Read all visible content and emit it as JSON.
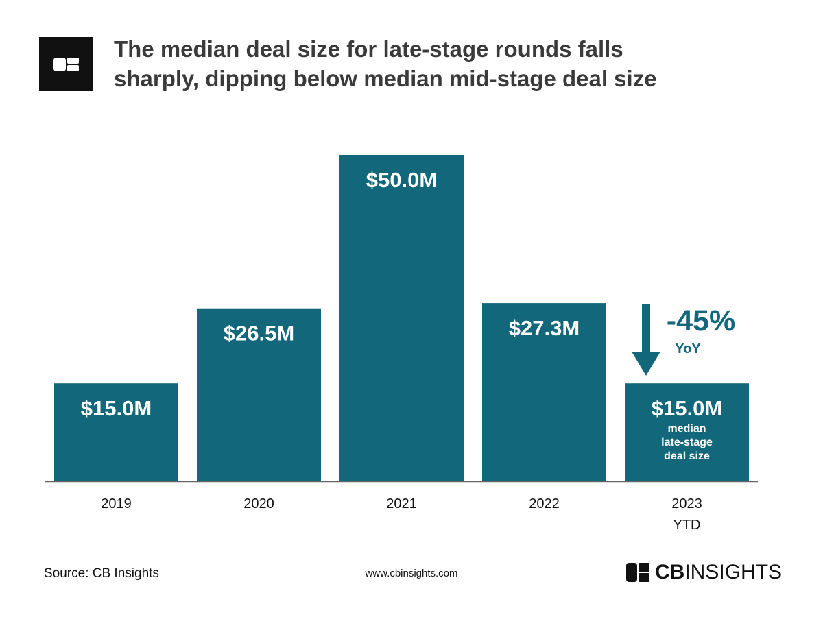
{
  "title_lines": [
    "The median deal size for late-stage rounds falls",
    "sharply, dipping below median mid-stage deal size"
  ],
  "footer": {
    "source": "Source: CB Insights",
    "url": "www.cbinsights.com",
    "brand_bold": "CB",
    "brand_rest": "INSIGHTS"
  },
  "colors": {
    "bar": "#12677a",
    "axis": "#666666",
    "annotation": "#12677a",
    "logo": "#111111"
  },
  "icons": {
    "header_logo": "cb-logo-icon",
    "footer_logo": "cb-mark-icon",
    "arrow": "down-arrow-icon"
  },
  "chart_data": {
    "type": "bar",
    "title": "The median deal size for late-stage rounds falls sharply, dipping below median mid-stage deal size",
    "xlabel": "",
    "ylabel": "",
    "ylim": [
      0,
      50
    ],
    "grid": false,
    "categories": [
      [
        "2019"
      ],
      [
        "2020"
      ],
      [
        "2021"
      ],
      [
        "2022"
      ],
      [
        "2023",
        "YTD"
      ]
    ],
    "values": [
      15.0,
      26.5,
      50.0,
      27.3,
      15.0
    ],
    "value_labels": [
      "$15.0M",
      "$26.5M",
      "$50.0M",
      "$27.3M",
      "$15.0M"
    ],
    "units": "$M",
    "bar_note": [
      "median",
      "late-stage",
      "deal size"
    ],
    "annotation": {
      "text": "-45%",
      "subtext": "YoY",
      "direction": "down"
    }
  }
}
